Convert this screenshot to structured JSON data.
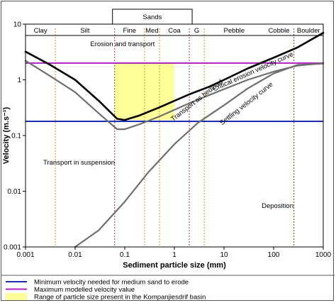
{
  "chart_data": {
    "type": "line",
    "xlabel": "Sediment particle size (mm)",
    "ylabel": "Velocity (m.s⁻¹)",
    "xscale": "log",
    "yscale": "log",
    "xlim": [
      0.001,
      1000
    ],
    "ylim": [
      0.001,
      10
    ],
    "grid": false,
    "x_tick_labels": [
      "0.001",
      "0.01",
      "0.1",
      "1",
      "10",
      "100",
      "1000"
    ],
    "x_ticks": [
      0.001,
      0.01,
      0.1,
      1,
      10,
      100,
      1000
    ],
    "y_tick_labels": [
      "0.001",
      "0.01",
      "0.1",
      "1",
      "10"
    ],
    "y_ticks": [
      0.001,
      0.01,
      0.1,
      1,
      10
    ],
    "size_classes": [
      {
        "label": "Clay",
        "from": 0.001,
        "to": 0.004
      },
      {
        "label": "Silt",
        "from": 0.004,
        "to": 0.0625
      },
      {
        "label": "Fine",
        "from": 0.0625,
        "to": 0.25
      },
      {
        "label": "Med",
        "from": 0.25,
        "to": 0.5
      },
      {
        "label": "Coa",
        "from": 0.5,
        "to": 2
      },
      {
        "label": "G",
        "from": 2,
        "to": 4
      },
      {
        "label": "Pebble",
        "from": 4,
        "to": 64
      },
      {
        "label": "Cobble",
        "from": 64,
        "to": 256
      },
      {
        "label": "Boulder",
        "from": 256,
        "to": 1000
      }
    ],
    "group_label": "Sands",
    "group_range": [
      0.0625,
      2
    ],
    "boundaries": [
      {
        "x": 0.004,
        "color": "#d9a441"
      },
      {
        "x": 0.0625,
        "color": "#c0504d"
      },
      {
        "x": 0.25,
        "color": "#d9a441"
      },
      {
        "x": 0.5,
        "color": "#d9a441"
      },
      {
        "x": 2,
        "color": "#c0504d"
      },
      {
        "x": 4,
        "color": "#d9a441"
      },
      {
        "x": 256,
        "color": "#8b5a2b"
      }
    ],
    "shaded_region": {
      "x": [
        0.0625,
        1
      ],
      "y": [
        0.19,
        2
      ],
      "color": "#ffff99"
    },
    "series": [
      {
        "name": "Critical erosion velocity curve",
        "color": "#000000",
        "width": 2.6,
        "x": [
          0.001,
          0.003,
          0.01,
          0.03,
          0.07,
          0.1,
          0.2,
          0.5,
          1,
          2,
          5,
          10,
          30,
          100,
          300,
          1000
        ],
        "y": [
          3.2,
          1.9,
          1.0,
          0.42,
          0.2,
          0.19,
          0.23,
          0.32,
          0.42,
          0.55,
          0.75,
          1.0,
          1.6,
          2.5,
          3.8,
          7.0
        ]
      },
      {
        "name": "Transport as bedload",
        "color": "#6e6e6e",
        "width": 2.2,
        "x": [
          0.001,
          0.003,
          0.01,
          0.03,
          0.07,
          0.1,
          0.2,
          0.5,
          1,
          2,
          5,
          10,
          30,
          100,
          300,
          1000
        ],
        "y": [
          2.2,
          1.2,
          0.6,
          0.25,
          0.13,
          0.13,
          0.16,
          0.22,
          0.29,
          0.38,
          0.53,
          0.68,
          1.0,
          1.4,
          1.8,
          2.0
        ]
      },
      {
        "name": "Settling velocity curve",
        "color": "#6e6e6e",
        "width": 2.2,
        "x": [
          0.01,
          0.03,
          0.1,
          0.3,
          1,
          3,
          10,
          30,
          100,
          300,
          1000
        ],
        "y": [
          0.001,
          0.002,
          0.0065,
          0.022,
          0.07,
          0.17,
          0.35,
          0.7,
          1.3,
          1.85,
          1.95
        ]
      }
    ],
    "hlines": [
      {
        "y": 0.18,
        "color": "#1f2db4",
        "legend": "Minimum velocity needed for medium sand to erode"
      },
      {
        "y": 2.0,
        "color": "#b020c0",
        "legend": "Maximum modelled velocity value"
      }
    ],
    "annotations": [
      {
        "text": "Erosion and transport",
        "x": 0.09,
        "y": 4.0
      },
      {
        "text": "Transport in suspension",
        "x": 0.012,
        "y": 0.03
      },
      {
        "text": "Deposition",
        "x": 120,
        "y": 0.005
      },
      {
        "text": "Critical erosion velocity curve",
        "x": 40,
        "y": 1.3,
        "rotate": -24
      },
      {
        "text": "Transport as bedload",
        "x": 3,
        "y": 0.4,
        "rotate": -38
      },
      {
        "text": "Settling velocity curve",
        "x": 30,
        "y": 0.35,
        "rotate": -38
      }
    ],
    "legend": [
      {
        "kind": "line",
        "color": "#1f2db4",
        "text": "Minimum velocity needed for medium sand to erode"
      },
      {
        "kind": "line",
        "color": "#b020c0",
        "text": "Maximum modelled velocity value"
      },
      {
        "kind": "box",
        "color": "#ffff99",
        "text": "Range of particle size present in the Kompanjiesdrif basin"
      }
    ],
    "legend_position": "bottom"
  }
}
